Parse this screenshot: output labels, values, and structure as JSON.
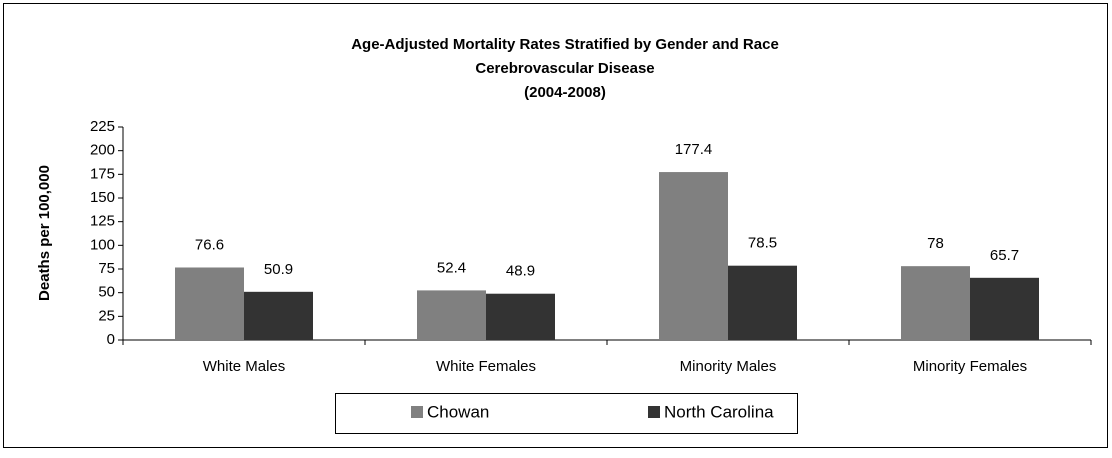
{
  "chart_data": {
    "type": "bar",
    "title": "Age-Adjusted Mortality Rates Stratified by Gender and Race",
    "subtitle": "Cerebrovascular Disease",
    "period": "(2004-2008)",
    "y_label": "Deaths per 100,000",
    "categories": [
      "White Males",
      "White Females",
      "Minority Males",
      "Minority Females"
    ],
    "series": [
      {
        "name": "Chowan",
        "color": "#808080",
        "values": [
          76.6,
          52.4,
          177.4,
          78
        ]
      },
      {
        "name": "North Carolina",
        "color": "#333333",
        "values": [
          50.9,
          48.9,
          78.5,
          65.7
        ]
      }
    ],
    "ylim": [
      0,
      225
    ],
    "yticks": [
      0,
      25,
      50,
      75,
      100,
      125,
      150,
      175,
      200,
      225
    ],
    "grid": false,
    "legend": "bottom"
  }
}
